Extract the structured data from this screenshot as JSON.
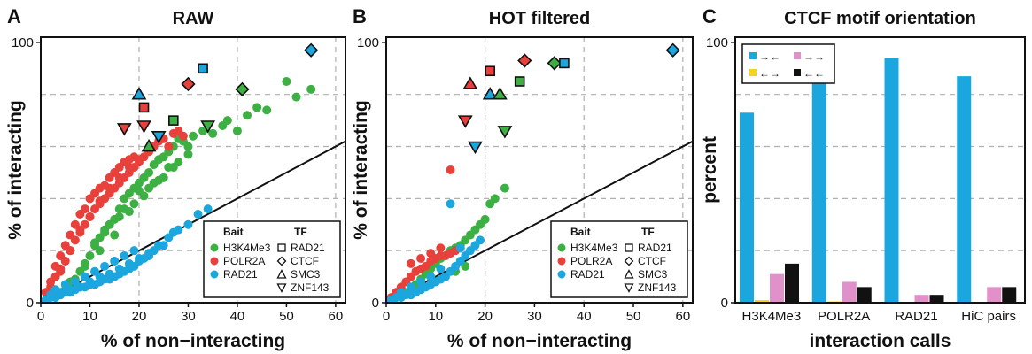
{
  "colors": {
    "H3K4Me3": "#3cb043",
    "POLR2A": "#e8413c",
    "RAD21": "#1ba7de",
    "grid": "#b0b0b0",
    "c_pink": "#e091c9",
    "c_yellow": "#f5d21e",
    "c_black": "#111111"
  },
  "chart_data": [
    {
      "type": "scatter",
      "panel_label": "A",
      "title": "RAW",
      "xlabel": "% of non−interacting",
      "ylabel": "% of interacting",
      "xlim": [
        0,
        62
      ],
      "ylim": [
        0,
        102
      ],
      "xticks": [
        "0",
        "10",
        "20",
        "30",
        "40",
        "50",
        "60"
      ],
      "yticks": [
        "0",
        "100"
      ],
      "grid": "dashed at 20, 40, 60 (x) and 20, 40, 60, 80 (y)",
      "diagonal_line": {
        "x": [
          0,
          62
        ],
        "y": [
          0,
          62
        ]
      },
      "legend": {
        "position": "bottom-right",
        "bait_title": "Bait",
        "tf_title": "TF",
        "bait_entries": [
          {
            "label": "H3K4Me3",
            "color": "#3cb043"
          },
          {
            "label": "POLR2A",
            "color": "#e8413c"
          },
          {
            "label": "RAD21",
            "color": "#1ba7de"
          }
        ],
        "tf_entries": [
          {
            "label": "RAD21",
            "shape": "square"
          },
          {
            "label": "CTCF",
            "shape": "diamond"
          },
          {
            "label": "SMC3",
            "shape": "triangle-up"
          },
          {
            "label": "ZNF143",
            "shape": "triangle-down"
          }
        ]
      },
      "series": [
        {
          "name": "H3K4Me3",
          "color": "#3cb043",
          "x": [
            3,
            5,
            7,
            8,
            9,
            10,
            11,
            12,
            13,
            14,
            15,
            16,
            17,
            18,
            19,
            20,
            21,
            22,
            23,
            24,
            25,
            26,
            27,
            28,
            29,
            30,
            31,
            33,
            35,
            37,
            38,
            40,
            42,
            44,
            46,
            50,
            52,
            55,
            3,
            6,
            9,
            12,
            15,
            18,
            21,
            24,
            27,
            30,
            13,
            16,
            19,
            22,
            25,
            28,
            11,
            14,
            17,
            20,
            23,
            26
          ],
          "y": [
            2,
            5,
            9,
            12,
            15,
            18,
            22,
            25,
            27,
            30,
            32,
            36,
            40,
            42,
            44,
            46,
            48,
            50,
            53,
            55,
            56,
            58,
            60,
            63,
            62,
            60,
            64,
            66,
            65,
            68,
            70,
            66,
            72,
            75,
            74,
            85,
            79,
            82,
            3,
            8,
            14,
            20,
            26,
            35,
            41,
            47,
            52,
            57,
            28,
            33,
            38,
            44,
            48,
            54,
            23,
            30,
            36,
            43,
            46,
            52
          ]
        },
        {
          "name": "POLR2A",
          "color": "#e8413c",
          "x": [
            1,
            2,
            3,
            3,
            4,
            4,
            5,
            5,
            6,
            6,
            7,
            7,
            8,
            8,
            9,
            9,
            10,
            10,
            11,
            11,
            12,
            12,
            13,
            13,
            14,
            14,
            15,
            15,
            16,
            16,
            17,
            17,
            18,
            18,
            19,
            19,
            20,
            21,
            22,
            23,
            24,
            25,
            26,
            27,
            28,
            29,
            2,
            4,
            6,
            8,
            10,
            12,
            14,
            16,
            18,
            20
          ],
          "y": [
            4,
            8,
            10,
            14,
            12,
            18,
            16,
            22,
            20,
            26,
            24,
            30,
            28,
            34,
            30,
            36,
            33,
            40,
            36,
            42,
            38,
            44,
            40,
            45,
            42,
            48,
            44,
            50,
            46,
            52,
            48,
            54,
            50,
            55,
            52,
            56,
            54,
            56,
            58,
            60,
            62,
            63,
            60,
            65,
            66,
            64,
            6,
            13,
            20,
            27,
            33,
            39,
            44,
            48,
            52,
            55
          ]
        },
        {
          "name": "RAD21",
          "color": "#1ba7de",
          "x": [
            1,
            2,
            3,
            4,
            5,
            6,
            7,
            8,
            9,
            10,
            11,
            12,
            13,
            14,
            15,
            16,
            17,
            18,
            19,
            20,
            21,
            22,
            23,
            24,
            25,
            26,
            27,
            28,
            30,
            32,
            34,
            2,
            4,
            6,
            8,
            10,
            12,
            14,
            16,
            18,
            20,
            22,
            24,
            3,
            5,
            7,
            9,
            11,
            13,
            15,
            17,
            19
          ],
          "y": [
            1,
            2,
            2,
            3,
            4,
            4,
            5,
            6,
            6,
            7,
            7,
            8,
            9,
            9,
            10,
            11,
            12,
            13,
            14,
            16,
            17,
            18,
            20,
            22,
            22,
            25,
            27,
            28,
            30,
            34,
            36,
            3,
            4,
            5,
            6,
            8,
            10,
            11,
            13,
            15,
            17,
            19,
            22,
            5,
            7,
            8,
            10,
            12,
            14,
            16,
            18,
            20
          ]
        },
        {
          "name": "TF highlights",
          "points": [
            {
              "x": 55,
              "y": 97,
              "shape": "diamond",
              "color": "#1ba7de"
            },
            {
              "x": 33,
              "y": 90,
              "shape": "square",
              "color": "#1ba7de"
            },
            {
              "x": 30,
              "y": 84,
              "shape": "diamond",
              "color": "#e8413c"
            },
            {
              "x": 41,
              "y": 82,
              "shape": "diamond",
              "color": "#3cb043"
            },
            {
              "x": 20,
              "y": 80,
              "shape": "triangle-up",
              "color": "#1ba7de"
            },
            {
              "x": 21,
              "y": 75,
              "shape": "square",
              "color": "#e8413c"
            },
            {
              "x": 27,
              "y": 70,
              "shape": "square",
              "color": "#3cb043"
            },
            {
              "x": 17,
              "y": 67,
              "shape": "triangle-down",
              "color": "#e8413c"
            },
            {
              "x": 21,
              "y": 68,
              "shape": "triangle-down",
              "color": "#e8413c"
            },
            {
              "x": 24,
              "y": 64,
              "shape": "triangle-down",
              "color": "#1ba7de"
            },
            {
              "x": 34,
              "y": 68,
              "shape": "triangle-down",
              "color": "#3cb043"
            },
            {
              "x": 22,
              "y": 60,
              "shape": "triangle-up",
              "color": "#3cb043"
            }
          ]
        }
      ]
    },
    {
      "type": "scatter",
      "panel_label": "B",
      "title": "HOT filtered",
      "xlabel": "% of non−interacting",
      "ylabel": "% of interacting",
      "xlim": [
        0,
        62
      ],
      "ylim": [
        0,
        102
      ],
      "xticks": [
        "0",
        "10",
        "20",
        "30",
        "40",
        "50",
        "60"
      ],
      "yticks": [
        "0",
        "100"
      ],
      "grid": "dashed at 20, 40, 60 (x) and 20, 40, 60, 80 (y)",
      "diagonal_line": {
        "x": [
          0,
          62
        ],
        "y": [
          0,
          62
        ]
      },
      "legend": {
        "position": "bottom-right",
        "bait_title": "Bait",
        "tf_title": "TF",
        "bait_entries": [
          {
            "label": "H3K4Me3",
            "color": "#3cb043"
          },
          {
            "label": "POLR2A",
            "color": "#e8413c"
          },
          {
            "label": "RAD21",
            "color": "#1ba7de"
          }
        ],
        "tf_entries": [
          {
            "label": "RAD21",
            "shape": "square"
          },
          {
            "label": "CTCF",
            "shape": "diamond"
          },
          {
            "label": "SMC3",
            "shape": "triangle-up"
          },
          {
            "label": "ZNF143",
            "shape": "triangle-down"
          }
        ]
      },
      "series": [
        {
          "name": "H3K4Me3",
          "color": "#3cb043",
          "x": [
            1,
            2,
            3,
            4,
            5,
            6,
            7,
            8,
            9,
            10,
            11,
            12,
            13,
            14,
            15,
            16,
            17,
            18,
            19,
            20,
            21,
            22,
            24,
            14,
            16
          ],
          "y": [
            1,
            2,
            3,
            4,
            6,
            7,
            9,
            11,
            13,
            15,
            17,
            18,
            20,
            21,
            22,
            24,
            26,
            28,
            30,
            32,
            38,
            40,
            44,
            12,
            14
          ]
        },
        {
          "name": "POLR2A",
          "color": "#e8413c",
          "x": [
            1,
            2,
            3,
            4,
            5,
            6,
            7,
            8,
            9,
            10,
            11,
            12,
            13,
            14,
            15,
            5,
            7,
            9,
            11,
            13
          ],
          "y": [
            2,
            4,
            6,
            8,
            10,
            12,
            13,
            14,
            16,
            17,
            18,
            18,
            19,
            20,
            21,
            15,
            17,
            19,
            21,
            51
          ]
        },
        {
          "name": "RAD21",
          "color": "#1ba7de",
          "x": [
            1,
            2,
            3,
            4,
            5,
            6,
            7,
            8,
            9,
            10,
            11,
            12,
            13,
            14,
            15,
            16,
            17,
            18,
            19,
            3,
            5,
            7,
            9,
            11,
            13,
            15
          ],
          "y": [
            1,
            2,
            2,
            3,
            3,
            4,
            5,
            6,
            7,
            8,
            9,
            10,
            12,
            14,
            16,
            18,
            20,
            22,
            24,
            4,
            6,
            8,
            10,
            13,
            38,
            21
          ]
        },
        {
          "name": "TF highlights",
          "points": [
            {
              "x": 58,
              "y": 97,
              "shape": "diamond",
              "color": "#1ba7de"
            },
            {
              "x": 34,
              "y": 92,
              "shape": "diamond",
              "color": "#3cb043"
            },
            {
              "x": 36,
              "y": 92,
              "shape": "square",
              "color": "#1ba7de"
            },
            {
              "x": 28,
              "y": 93,
              "shape": "diamond",
              "color": "#e8413c"
            },
            {
              "x": 21,
              "y": 89,
              "shape": "square",
              "color": "#e8413c"
            },
            {
              "x": 27,
              "y": 85,
              "shape": "square",
              "color": "#3cb043"
            },
            {
              "x": 17,
              "y": 84,
              "shape": "triangle-up",
              "color": "#e8413c"
            },
            {
              "x": 21,
              "y": 80,
              "shape": "triangle-up",
              "color": "#1ba7de"
            },
            {
              "x": 23,
              "y": 80,
              "shape": "triangle-up",
              "color": "#3cb043"
            },
            {
              "x": 16,
              "y": 70,
              "shape": "triangle-down",
              "color": "#e8413c"
            },
            {
              "x": 24,
              "y": 66,
              "shape": "triangle-down",
              "color": "#3cb043"
            },
            {
              "x": 18,
              "y": 60,
              "shape": "triangle-down",
              "color": "#1ba7de"
            }
          ]
        }
      ]
    },
    {
      "type": "bar",
      "panel_label": "C",
      "title": "CTCF motif orientation",
      "xlabel": "interaction calls",
      "ylabel": "percent",
      "ylim": [
        0,
        102
      ],
      "yticks": [
        "0",
        "100"
      ],
      "grid": "dashed at 20, 40, 60, 80 (y)",
      "categories": [
        "H3K4Me3",
        "POLR2A",
        "RAD21",
        "HiC pairs"
      ],
      "legend": {
        "position": "top-left",
        "entries": [
          {
            "glyph": "→←",
            "color": "#1ba7de"
          },
          {
            "glyph": "→→",
            "color": "#e091c9"
          },
          {
            "glyph": "←→",
            "color": "#f5d21e"
          },
          {
            "glyph": "←←",
            "color": "#111111"
          }
        ]
      },
      "series": [
        {
          "color": "#1ba7de",
          "values": [
            73,
            86,
            94,
            87
          ]
        },
        {
          "color": "#f5d21e",
          "values": [
            1,
            0.5,
            0,
            0
          ]
        },
        {
          "color": "#e091c9",
          "values": [
            11,
            8,
            3,
            6
          ]
        },
        {
          "color": "#111111",
          "values": [
            15,
            6,
            3,
            6
          ]
        }
      ]
    }
  ]
}
